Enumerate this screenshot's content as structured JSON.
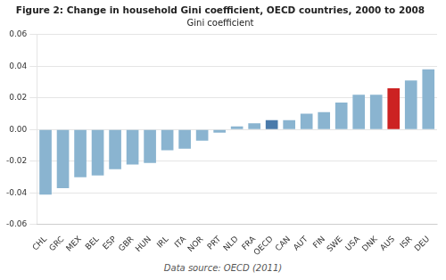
{
  "chart_data": {
    "type": "bar",
    "title": "Figure 2: Change in household Gini coefficient, OECD countries, 2000 to 2008",
    "subtitle": "Gini coefficient",
    "annotation": "Data source: OECD (2011)",
    "categories": [
      "CHL",
      "GRC",
      "MEX",
      "BEL",
      "ESP",
      "GBR",
      "HUN",
      "IRL",
      "ITA",
      "NOR",
      "PRT",
      "NLD",
      "FRA",
      "OECD",
      "CAN",
      "AUT",
      "FIN",
      "SWE",
      "USA",
      "DNK",
      "AUS",
      "ISR",
      "DEU"
    ],
    "values": [
      -0.041,
      -0.037,
      -0.03,
      -0.029,
      -0.025,
      -0.022,
      -0.021,
      -0.013,
      -0.012,
      -0.007,
      -0.002,
      0.002,
      0.004,
      0.006,
      0.006,
      0.01,
      0.011,
      0.017,
      0.022,
      0.022,
      0.026,
      0.031,
      0.038
    ],
    "colors": [
      "#8ab4d0",
      "#8ab4d0",
      "#8ab4d0",
      "#8ab4d0",
      "#8ab4d0",
      "#8ab4d0",
      "#8ab4d0",
      "#8ab4d0",
      "#8ab4d0",
      "#8ab4d0",
      "#8ab4d0",
      "#8ab4d0",
      "#8ab4d0",
      "#4a7aaa",
      "#8ab4d0",
      "#8ab4d0",
      "#8ab4d0",
      "#8ab4d0",
      "#8ab4d0",
      "#8ab4d0",
      "#cc2222",
      "#8ab4d0",
      "#8ab4d0"
    ],
    "ylim": [
      -0.06,
      0.06
    ],
    "yticks": [
      -0.06,
      -0.04,
      -0.02,
      {
        "value": 0,
        "label": "0.00"
      },
      0.02,
      0.04,
      0.06
    ],
    "grid": true
  }
}
